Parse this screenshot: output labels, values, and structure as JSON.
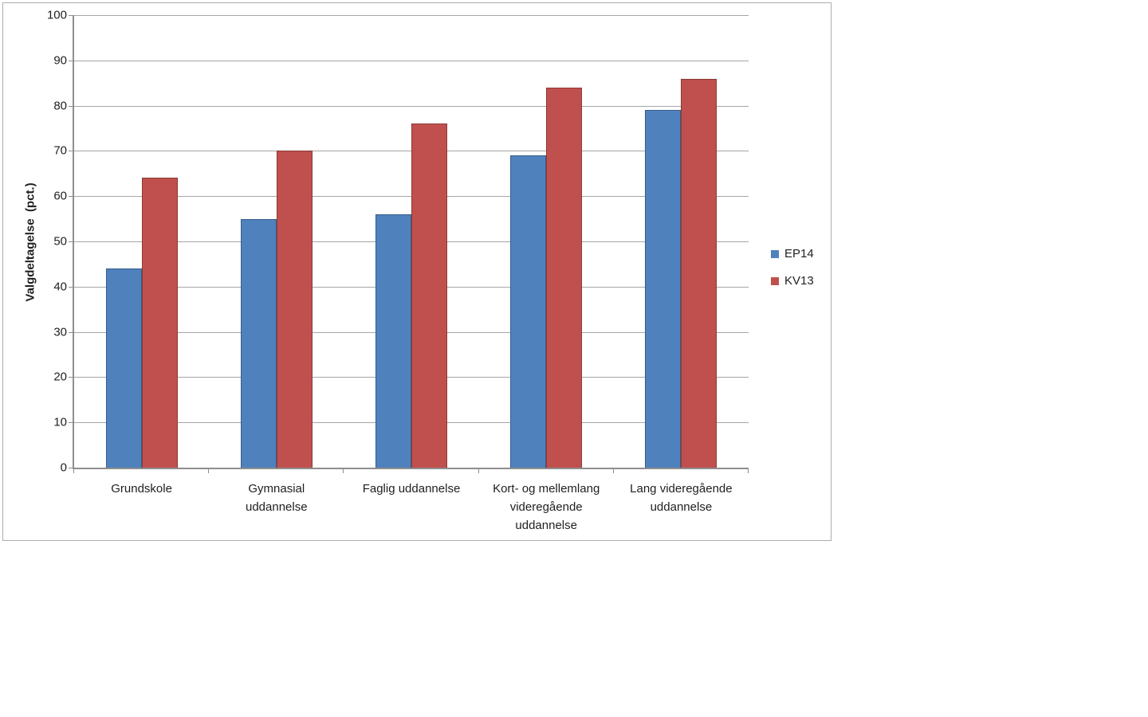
{
  "chart_data": {
    "type": "bar",
    "title": "",
    "ylabel": "Valgdeltagelse  (pct.)",
    "xlabel": "",
    "ylim": [
      0,
      100
    ],
    "ytick_step": 10,
    "yticks": [
      0,
      10,
      20,
      30,
      40,
      50,
      60,
      70,
      80,
      90,
      100
    ],
    "grid": true,
    "legend_position": "right",
    "categories": [
      "Grundskole",
      "Gymnasial uddannelse",
      "Faglig uddannelse",
      "Kort- og mellemlang videregående uddannelse",
      "Lang videregående uddannelse"
    ],
    "categories_wrapped": [
      "Grundskole",
      "Gymnasial\nuddannelse",
      "Faglig uddannelse",
      "Kort- og mellemlang\nvideregående\nuddannelse",
      "Lang videregående\nuddannelse"
    ],
    "series": [
      {
        "name": "EP14",
        "color": "#4f81bd",
        "values": [
          44,
          55,
          56,
          69,
          79
        ]
      },
      {
        "name": "KV13",
        "color": "#c0504d",
        "values": [
          64,
          70,
          76,
          84,
          86
        ]
      }
    ],
    "colors": {
      "gridline": "#a6a6a6",
      "axis": "#8e8e8e",
      "text": "#1f1f1f",
      "chart_border": "#acacac",
      "background": "#ffffff"
    }
  }
}
